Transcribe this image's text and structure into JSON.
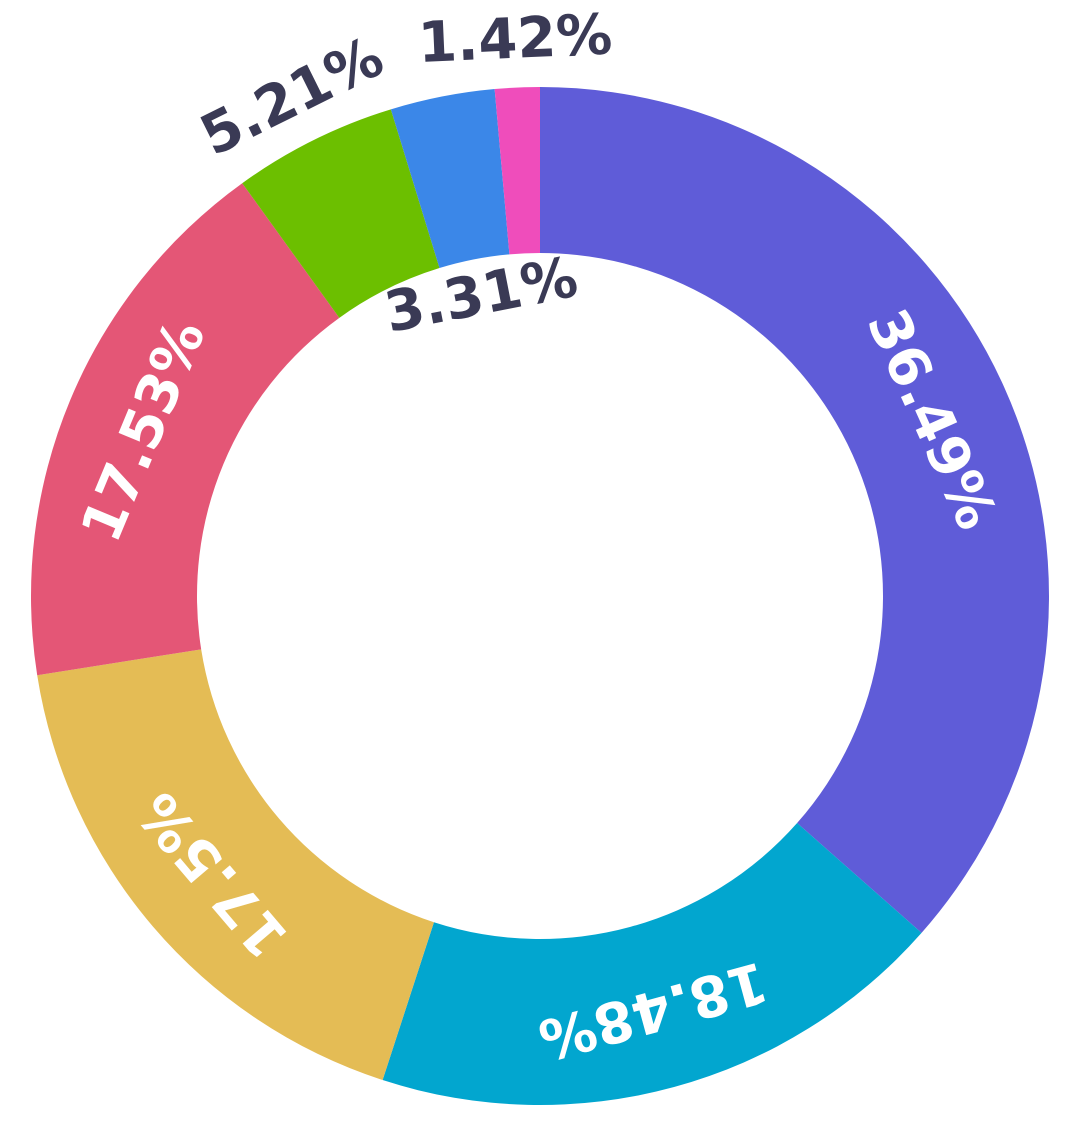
{
  "chart_data": {
    "type": "donut",
    "categories": [
      null,
      null,
      null,
      null,
      null,
      null,
      null
    ],
    "values": [
      36.49,
      18.48,
      17.5,
      17.53,
      5.21,
      3.31,
      1.42
    ],
    "value_labels": [
      "36.49%",
      "18.48%",
      "17.5%",
      "17.53%",
      "5.21%",
      "3.31%",
      "1.42%"
    ],
    "colors": [
      "#5f5cd8",
      "#02a6cf",
      "#e4bc55",
      "#e45676",
      "#6cbf00",
      "#3b87e8",
      "#ef4dbb"
    ]
  }
}
